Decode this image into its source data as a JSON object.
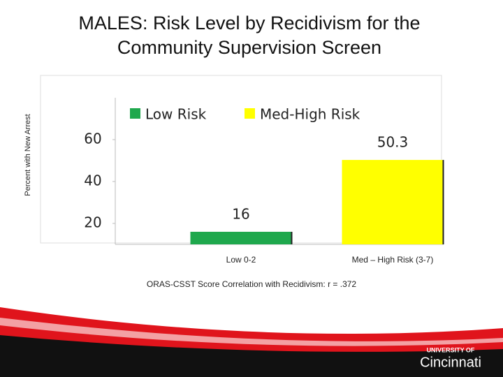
{
  "chart_data": {
    "type": "bar",
    "title": [
      "MALES: Risk Level by Recidivism for the",
      "Community Supervision Screen"
    ],
    "ylabel": "Percent with New Arrest",
    "categories": [
      "Low 0-2",
      "Med – High Risk (3-7)"
    ],
    "series": [
      {
        "name": "Low Risk",
        "color": "#1fa84d",
        "values": [
          16,
          null
        ]
      },
      {
        "name": "Med-High Risk",
        "color": "#ffff00",
        "values": [
          null,
          50.3
        ]
      }
    ],
    "ylim": [
      10,
      80
    ],
    "yticks": [
      20,
      40,
      60
    ],
    "caption": "ORAS-CSST Score Correlation with Recidivism: r = .372"
  },
  "logo": {
    "line1": "UNIVERSITY OF",
    "line2": "Cincinnati"
  }
}
